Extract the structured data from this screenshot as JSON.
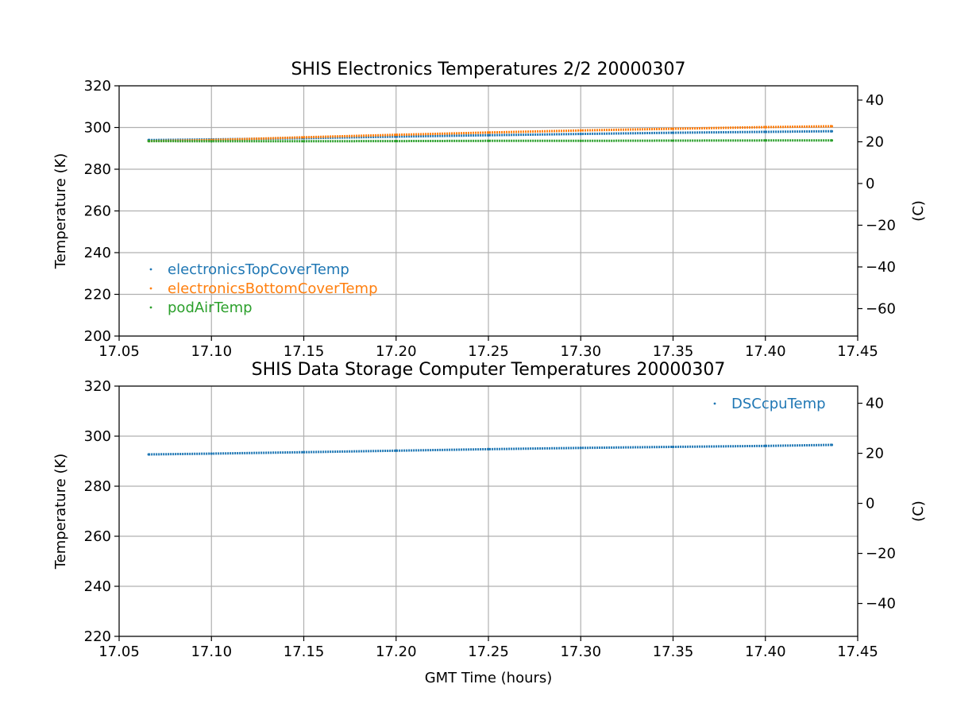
{
  "chart_data": [
    {
      "type": "scatter",
      "title": "SHIS Electronics Temperatures 2/2 20000307",
      "xlabel": "",
      "ylabel": "Temperature (K)",
      "y2label": "(C)",
      "xlim": [
        17.05,
        17.45
      ],
      "ylim": [
        200,
        320
      ],
      "xticks": [
        "17.05",
        "17.10",
        "17.15",
        "17.20",
        "17.25",
        "17.30",
        "17.35",
        "17.40",
        "17.45"
      ],
      "yticks": [
        "200",
        "220",
        "240",
        "260",
        "280",
        "300",
        "320"
      ],
      "y2ticks": [
        "−60",
        "−40",
        "−20",
        "0",
        "20",
        "40"
      ],
      "grid": true,
      "legend_position": "lower-left",
      "series": [
        {
          "name": "electronicsTopCoverTemp",
          "color": "#1f77b4",
          "x": [
            17.066,
            17.1,
            17.15,
            17.2,
            17.25,
            17.3,
            17.35,
            17.4,
            17.436
          ],
          "y": [
            294.0,
            294.3,
            294.9,
            295.6,
            296.3,
            296.9,
            297.5,
            297.9,
            298.2
          ]
        },
        {
          "name": "electronicsBottomCoverTemp",
          "color": "#ff7f0e",
          "x": [
            17.066,
            17.1,
            17.15,
            17.2,
            17.25,
            17.3,
            17.35,
            17.4,
            17.436
          ],
          "y": [
            293.5,
            294.0,
            295.3,
            296.5,
            297.6,
            298.6,
            299.4,
            300.2,
            300.6
          ]
        },
        {
          "name": "podAirTemp",
          "color": "#2ca02c",
          "x": [
            17.066,
            17.1,
            17.15,
            17.2,
            17.25,
            17.3,
            17.35,
            17.4,
            17.436
          ],
          "y": [
            293.5,
            293.4,
            293.4,
            293.5,
            293.6,
            293.6,
            293.7,
            293.8,
            293.8
          ]
        }
      ]
    },
    {
      "type": "scatter",
      "title": "SHIS Data Storage Computer Temperatures 20000307",
      "xlabel": "GMT Time (hours)",
      "ylabel": "Temperature (K)",
      "y2label": "(C)",
      "xlim": [
        17.05,
        17.45
      ],
      "ylim": [
        220,
        320
      ],
      "xticks": [
        "17.05",
        "17.10",
        "17.15",
        "17.20",
        "17.25",
        "17.30",
        "17.35",
        "17.40",
        "17.45"
      ],
      "yticks": [
        "220",
        "240",
        "260",
        "280",
        "300",
        "320"
      ],
      "y2ticks": [
        "−40",
        "−20",
        "0",
        "20",
        "40"
      ],
      "grid": true,
      "legend_position": "upper-right",
      "series": [
        {
          "name": "DSCcpuTemp",
          "color": "#1f77b4",
          "x": [
            17.066,
            17.1,
            17.15,
            17.2,
            17.25,
            17.3,
            17.35,
            17.4,
            17.436
          ],
          "y": [
            292.7,
            293.0,
            293.6,
            294.2,
            294.8,
            295.3,
            295.7,
            296.1,
            296.5
          ]
        }
      ]
    }
  ]
}
